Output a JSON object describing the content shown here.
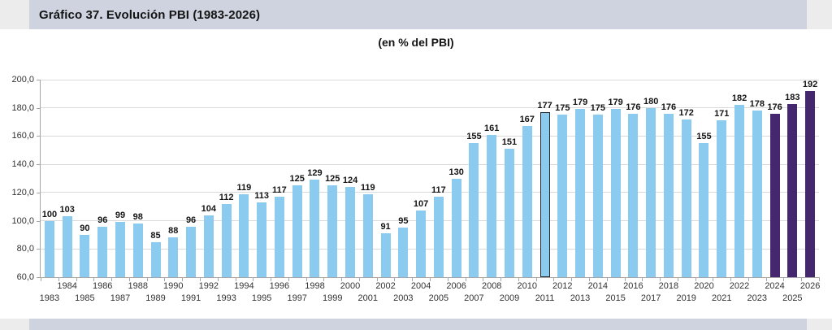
{
  "header": {
    "title": "Gráfico 37. Evolución PBI (1983-2026)"
  },
  "subtitle": "(en % del PBI)",
  "colors": {
    "bar": "#8CCBF0",
    "bar_forecast": "#44276F",
    "highlight_border": "#262626",
    "header_bg": "#CFD3E0",
    "corner_bg": "#ECECEC",
    "gridline": "#D9D9D9",
    "axis": "#A6A6A6"
  },
  "chart_data": {
    "type": "bar",
    "title": "Gráfico 37. Evolución PBI (1983-2026)",
    "subtitle": "(en % del PBI)",
    "categories": [
      1983,
      1984,
      1985,
      1986,
      1987,
      1988,
      1989,
      1990,
      1991,
      1992,
      1993,
      1994,
      1995,
      1996,
      1997,
      1998,
      1999,
      2000,
      2001,
      2002,
      2003,
      2004,
      2005,
      2006,
      2007,
      2008,
      2009,
      2010,
      2011,
      2012,
      2013,
      2014,
      2015,
      2016,
      2017,
      2018,
      2019,
      2020,
      2021,
      2022,
      2023,
      2024,
      2025,
      2026
    ],
    "values": [
      100,
      103,
      90,
      96,
      99,
      98,
      85,
      88,
      96,
      104,
      112,
      119,
      113,
      117,
      125,
      129,
      125,
      124,
      119,
      91,
      95,
      107,
      117,
      130,
      155,
      161,
      151,
      167,
      177,
      175,
      179,
      175,
      179,
      176,
      180,
      176,
      172,
      155,
      171,
      182,
      178,
      176,
      183,
      192
    ],
    "ylim": [
      60,
      200
    ],
    "ytick_step": 20,
    "ytick_labels": [
      "60,0",
      "80,0",
      "100,0",
      "120,0",
      "140,0",
      "160,0",
      "180,0",
      "200,0"
    ],
    "xlabel": "",
    "ylabel": "",
    "grid": true,
    "legend": false,
    "data_labels": true,
    "highlight_year": 2011,
    "forecast_years": [
      2024,
      2025,
      2026
    ]
  }
}
